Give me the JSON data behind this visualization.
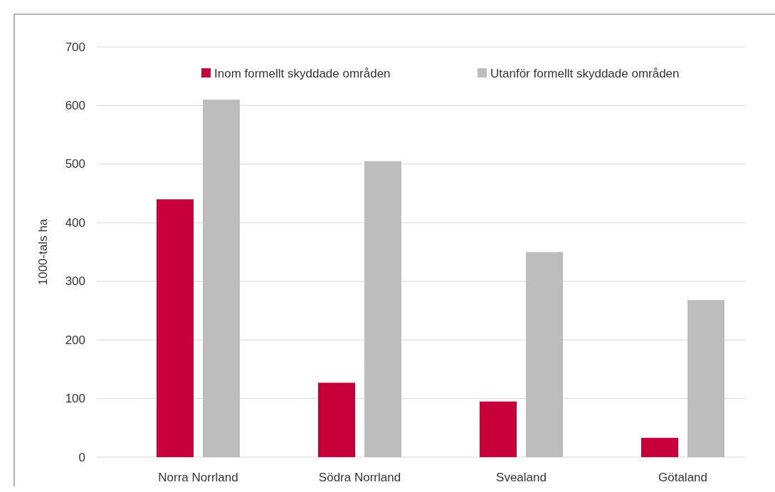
{
  "chart_data": {
    "type": "bar",
    "ylabel": "1000-tals ha",
    "categories": [
      "Norra Norrland",
      "Södra Norrland",
      "Svealand",
      "Götaland"
    ],
    "series": [
      {
        "name": "Inom formellt skyddade områden",
        "color": "#c8003a",
        "values": [
          440,
          127,
          95,
          33
        ]
      },
      {
        "name": "Utanför formellt skyddade områden",
        "color": "#bdbdbd",
        "values": [
          610,
          505,
          350,
          268
        ]
      }
    ],
    "ylim": [
      0,
      700
    ],
    "yticks": [
      0,
      100,
      200,
      300,
      400,
      500,
      600,
      700
    ],
    "grid": "y",
    "legend": "top right"
  }
}
